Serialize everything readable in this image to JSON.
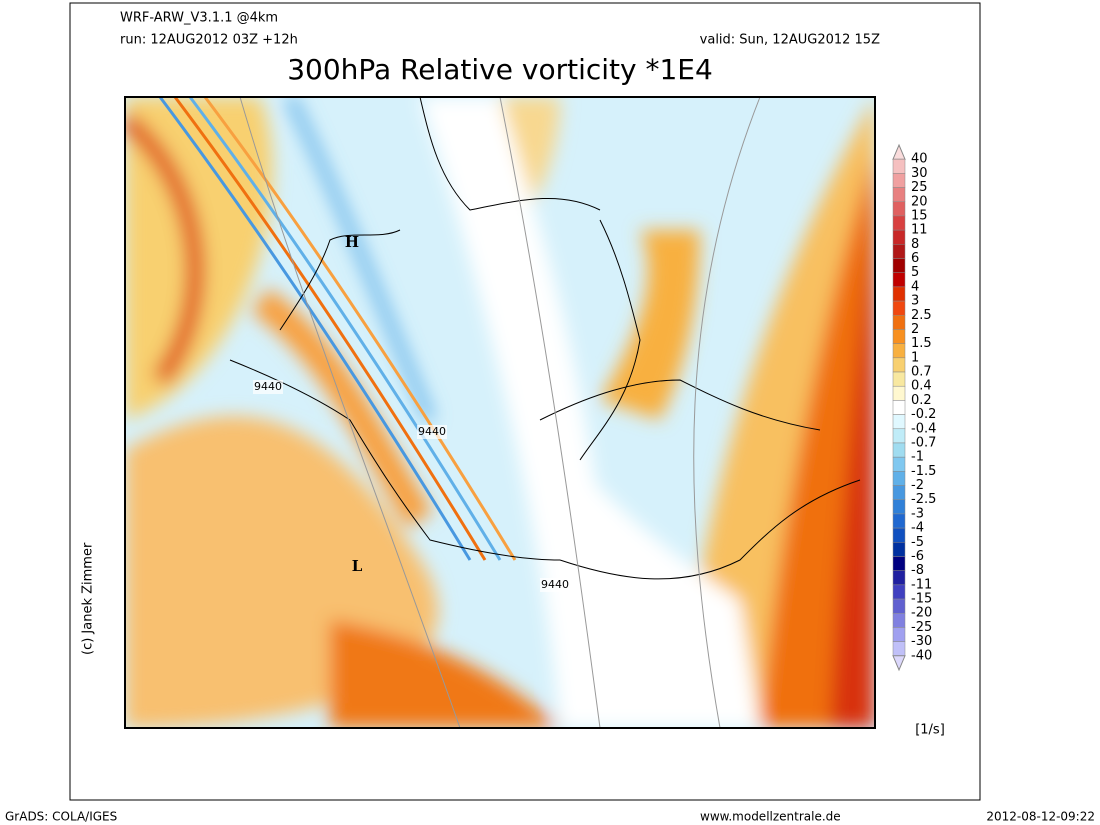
{
  "header": {
    "model": "WRF-ARW_V3.1.1 @4km",
    "run": "run: 12AUG2012 03Z +12h",
    "valid": "valid: Sun, 12AUG2012 15Z",
    "title": "300hPa Relative vorticity *1E4"
  },
  "map": {
    "contour_labels": [
      "9440",
      "9440",
      "9440"
    ],
    "highs": [
      "H"
    ],
    "lows": [
      "L"
    ]
  },
  "colorbar": {
    "labels": [
      "40",
      "30",
      "25",
      "20",
      "15",
      "11",
      "8",
      "6",
      "5",
      "4",
      "3",
      "2.5",
      "2",
      "1.5",
      "1",
      "0.7",
      "0.4",
      "0.2",
      "-0.2",
      "-0.4",
      "-0.7",
      "-1",
      "-1.5",
      "-2",
      "-2.5",
      "-3",
      "-4",
      "-5",
      "-6",
      "-8",
      "-11",
      "-15",
      "-20",
      "-25",
      "-30",
      "-40"
    ],
    "colors": [
      "#fadcdc",
      "#f5c0c0",
      "#f0a0a0",
      "#e88080",
      "#e06060",
      "#d84040",
      "#c82828",
      "#b01818",
      "#a00000",
      "#c00000",
      "#e03000",
      "#f04810",
      "#f07010",
      "#f89020",
      "#f8b040",
      "#f8d070",
      "#f8e8a0",
      "#fff8d0",
      "#ffffff",
      "#e0f8ff",
      "#c0ecf8",
      "#a0dcf0",
      "#80c8f0",
      "#60b0e8",
      "#4898e0",
      "#3080d8",
      "#2068d0",
      "#1050c0",
      "#0030a0",
      "#000080",
      "#2020a0",
      "#4040c0",
      "#6060d0",
      "#8080e0",
      "#a0a0f0",
      "#c0c0f8",
      "#dcd8fc"
    ],
    "unit": "[1/s]"
  },
  "credit": "(c) Janek Zimmer",
  "footer": {
    "software": "GrADS: COLA/IGES",
    "website": "www.modellzentrale.de",
    "timestamp": "2012-08-12-09:22"
  }
}
